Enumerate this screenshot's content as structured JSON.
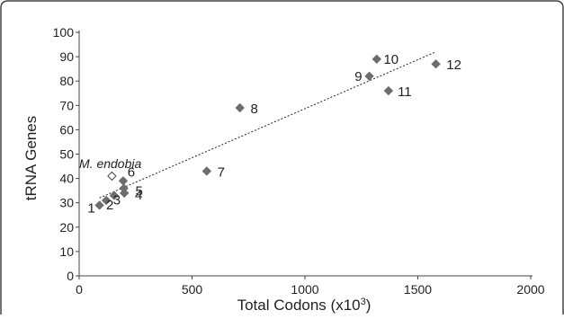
{
  "chart_data": {
    "type": "scatter",
    "xlabel": "Total Codons (x10",
    "xlabel_sup": "3",
    "xlabel_end": ")",
    "ylabel": "tRNA Genes",
    "xlim": [
      0,
      2000
    ],
    "ylim": [
      0,
      100
    ],
    "xticks": [
      "0",
      "500",
      "1000",
      "1500",
      "2000"
    ],
    "yticks": [
      "0",
      "10",
      "20",
      "30",
      "40",
      "50",
      "60",
      "70",
      "80",
      "90",
      "100"
    ],
    "grid": false,
    "legend": "none",
    "points": [
      {
        "label": "1",
        "x": 90,
        "y": 29,
        "style": "filled"
      },
      {
        "label": "2",
        "x": 120,
        "y": 31,
        "style": "filled"
      },
      {
        "label": "3",
        "x": 155,
        "y": 33,
        "style": "filled"
      },
      {
        "label": "4",
        "x": 200,
        "y": 34,
        "style": "filled"
      },
      {
        "label": "5",
        "x": 198,
        "y": 36,
        "style": "filled"
      },
      {
        "label": "6",
        "x": 195,
        "y": 39,
        "style": "filled"
      },
      {
        "label": "7",
        "x": 565,
        "y": 43,
        "style": "filled"
      },
      {
        "label": "8",
        "x": 712,
        "y": 69,
        "style": "filled"
      },
      {
        "label": "9",
        "x": 1285,
        "y": 82,
        "style": "filled"
      },
      {
        "label": "10",
        "x": 1318,
        "y": 89,
        "style": "filled"
      },
      {
        "label": "11",
        "x": 1370,
        "y": 76,
        "style": "filled"
      },
      {
        "label": "12",
        "x": 1580,
        "y": 87,
        "style": "filled"
      },
      {
        "label": "",
        "x": 145,
        "y": 41,
        "style": "open"
      }
    ],
    "annotation": "M. endobia",
    "trendline": {
      "x0": 90,
      "y0": 32,
      "x1": 1580,
      "y1": 92,
      "style": "dashed"
    },
    "colors": {
      "marker": "#6d6d6d",
      "open_marker": "#ffffff",
      "trendline": "#222222",
      "frame": "#444444"
    }
  }
}
